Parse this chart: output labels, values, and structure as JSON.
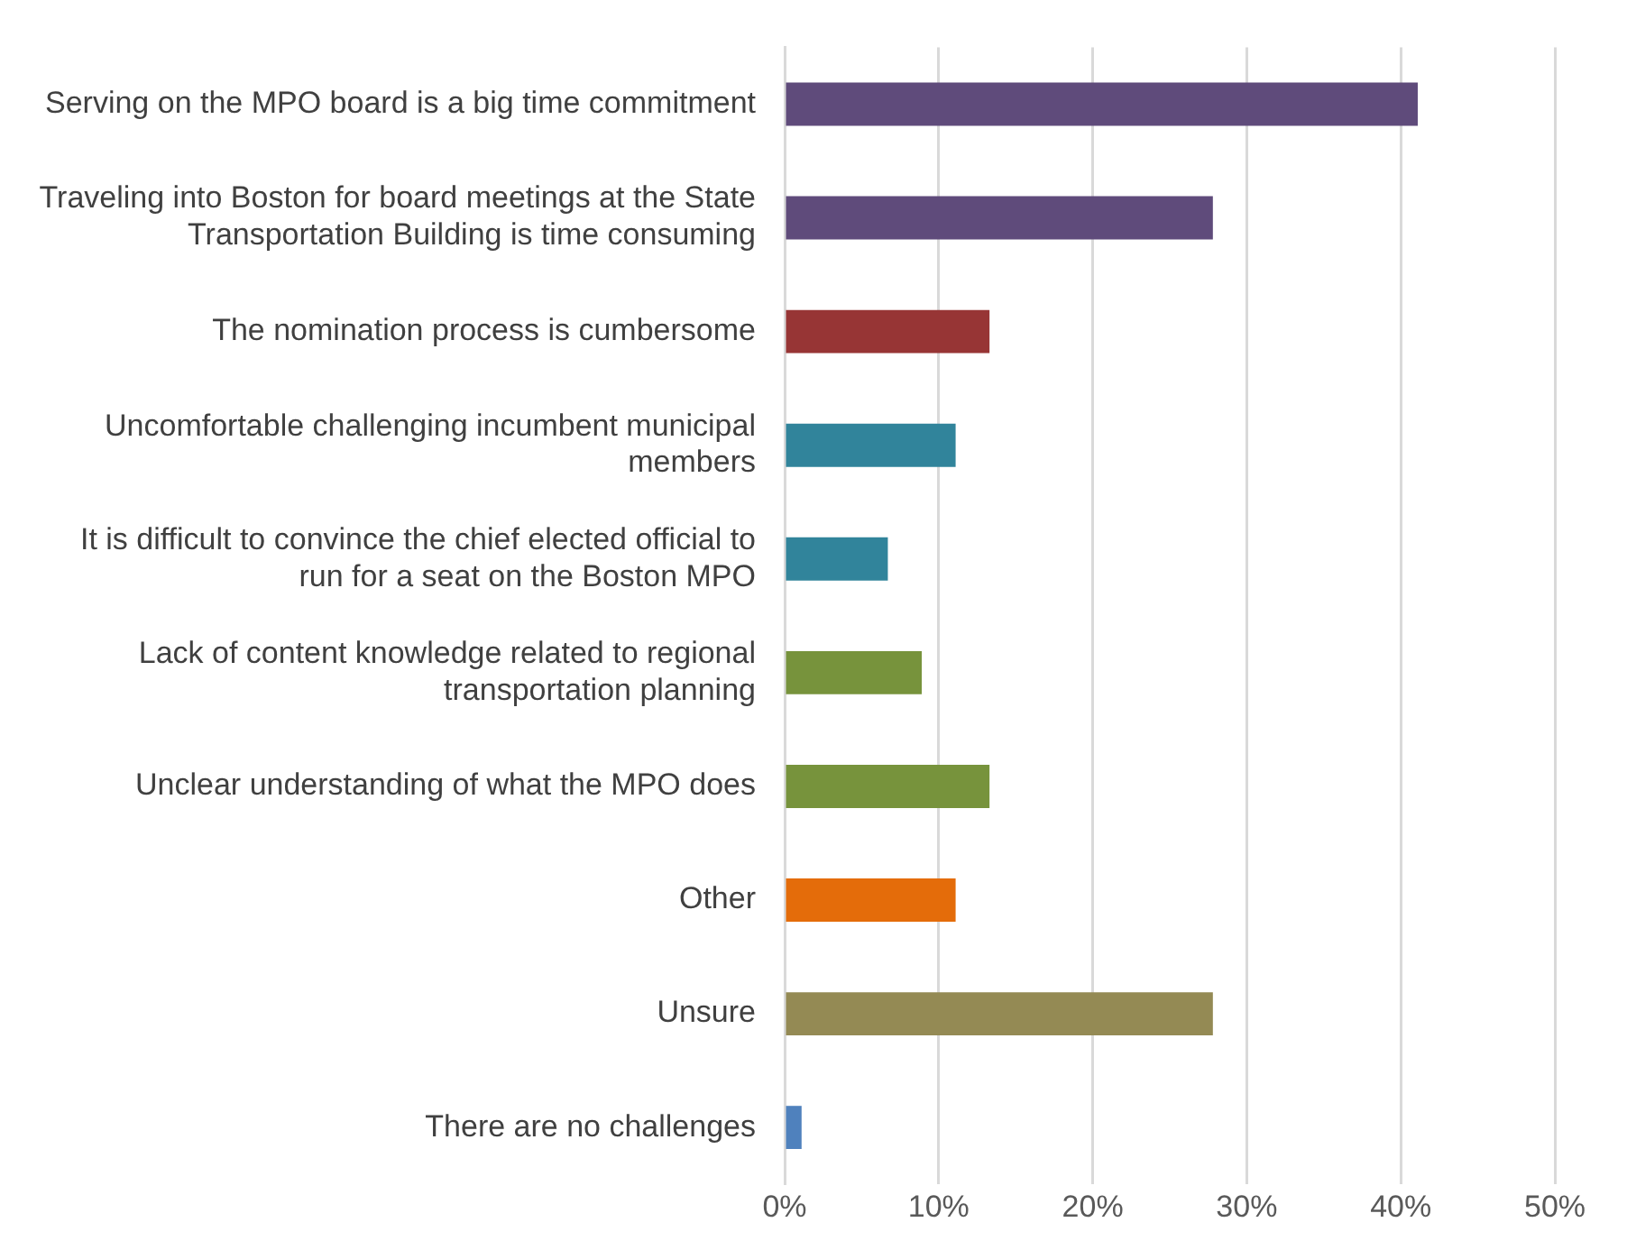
{
  "chart_data": {
    "type": "bar",
    "orientation": "horizontal",
    "categories": [
      "Serving on the MPO board is a big time commitment",
      "Traveling into Boston for board meetings at the State Transportation Building is time consuming",
      "The nomination process is cumbersome",
      "Uncomfortable challenging incumbent municipal members",
      "It is difficult to convince the chief elected official to run for a seat on the Boston MPO",
      "Lack of content knowledge related to regional transportation planning",
      "Unclear understanding of what the MPO does",
      "Other",
      "Unsure",
      "There are no challenges"
    ],
    "values": [
      41.1,
      27.8,
      13.3,
      11.1,
      6.7,
      8.9,
      13.3,
      11.1,
      27.8,
      1.1
    ],
    "colors": [
      "#5f4b7b",
      "#5f4b7b",
      "#973535",
      "#31849b",
      "#31849b",
      "#77933c",
      "#77933c",
      "#e46c0a",
      "#948a54",
      "#4f81bd"
    ],
    "xlim": [
      0,
      50
    ],
    "xticks": [
      {
        "value": 0,
        "label": "0%"
      },
      {
        "value": 10,
        "label": "10%"
      },
      {
        "value": 20,
        "label": "20%"
      },
      {
        "value": 30,
        "label": "30%"
      },
      {
        "value": 40,
        "label": "40%"
      },
      {
        "value": 50,
        "label": "50%"
      }
    ],
    "grid": "x",
    "legend": false
  }
}
